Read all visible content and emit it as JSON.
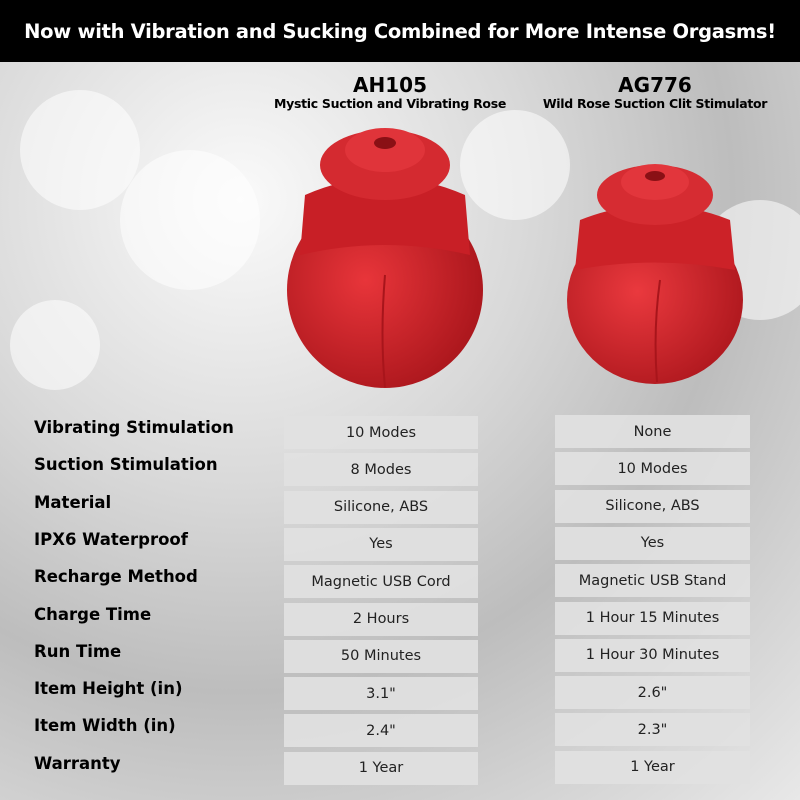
{
  "banner": "Now with Vibration and Sucking Combined for More Intense Orgasms!",
  "products": [
    {
      "code": "AH105",
      "name": "Mystic Suction and Vibrating Rose",
      "color": "#d8262c"
    },
    {
      "code": "AG776",
      "name": "Wild Rose Suction Clit Stimulator",
      "color": "#dc2a30"
    }
  ],
  "rows": [
    {
      "label": "Vibrating Stimulation",
      "values": [
        "10 Modes",
        "None"
      ]
    },
    {
      "label": "Suction Stimulation",
      "values": [
        "8 Modes",
        "10 Modes"
      ]
    },
    {
      "label": "Material",
      "values": [
        "Silicone, ABS",
        "Silicone, ABS"
      ]
    },
    {
      "label": "IPX6 Waterproof",
      "values": [
        "Yes",
        "Yes"
      ]
    },
    {
      "label": "Recharge Method",
      "values": [
        "Magnetic USB Cord",
        "Magnetic USB Stand"
      ]
    },
    {
      "label": "Charge Time",
      "values": [
        "2 Hours",
        "1 Hour 15 Minutes"
      ]
    },
    {
      "label": "Run Time",
      "values": [
        "50 Minutes",
        "1 Hour 30 Minutes"
      ]
    },
    {
      "label": "Item Height (in)",
      "values": [
        "3.1\"",
        "2.6\""
      ]
    },
    {
      "label": "Item Width (in)",
      "values": [
        "2.4\"",
        "2.3\""
      ]
    },
    {
      "label": "Warranty",
      "values": [
        "1 Year",
        "1 Year"
      ]
    }
  ]
}
